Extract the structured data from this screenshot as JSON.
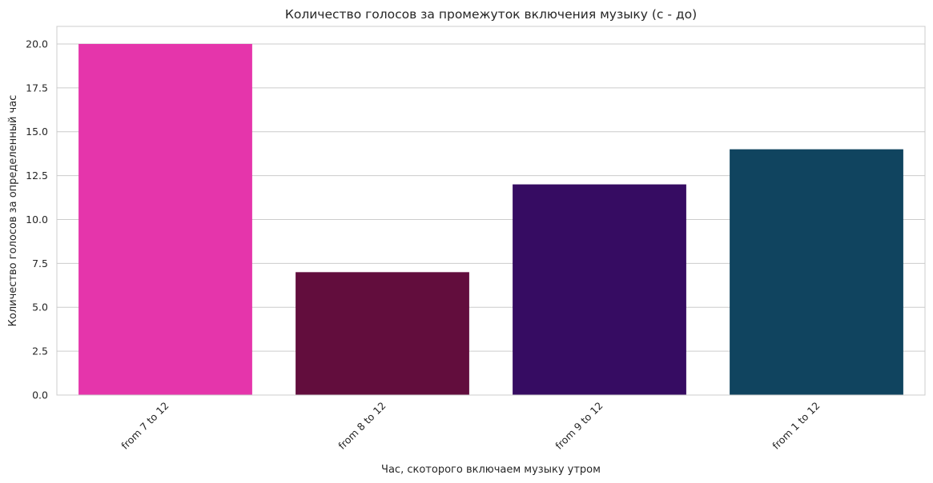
{
  "chart_data": {
    "type": "bar",
    "title": "Количество голосов за промежуток включения музыку (с - до)",
    "xlabel": "Час, скоторого включаем музыку утром",
    "ylabel": "Количество голосов за определенный час",
    "categories": [
      "from 7 to 12",
      "from 8 to 12",
      "from 9 to 12",
      "from 1 to 12"
    ],
    "values": [
      20,
      7,
      12,
      14
    ],
    "colors": [
      "#e535ab",
      "#620d3d",
      "#360c62",
      "#10445f"
    ],
    "ylim": [
      0,
      21
    ],
    "yticks": [
      "0.0",
      "2.5",
      "5.0",
      "7.5",
      "10.0",
      "12.5",
      "15.0",
      "17.5",
      "20.0"
    ],
    "grid": true,
    "legend": "none",
    "style": {
      "grid_color": "#cccccc",
      "axes_edge_color": "#cccccc",
      "background": "#ffffff"
    }
  }
}
